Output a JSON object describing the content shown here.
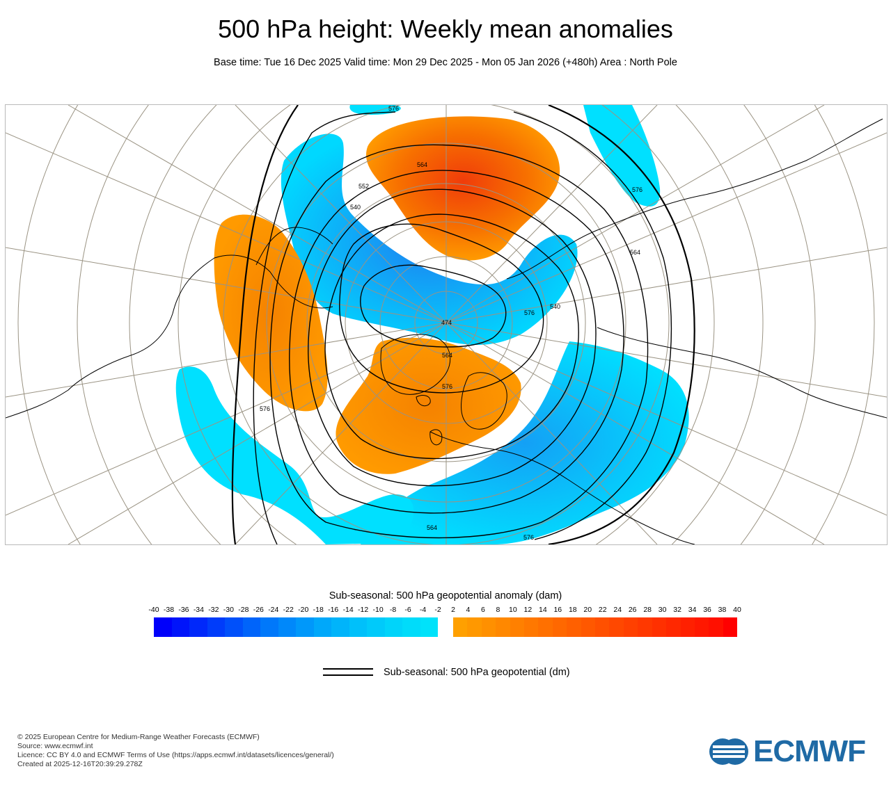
{
  "header": {
    "title": "500 hPa height: Weekly mean anomalies",
    "subtitle": "Base time: Tue 16 Dec 2025 Valid time: Mon 29 Dec 2025 - Mon 05 Jan 2026 (+480h) Area : North Pole"
  },
  "map": {
    "contour_labels": [
      "576",
      "564",
      "552",
      "540",
      "576",
      "564",
      "576",
      "540",
      "564",
      "576",
      "576",
      "564",
      "576"
    ],
    "pole_label": "474",
    "colors": {
      "negative": "#00e0ff",
      "negative_dark": "#1e8ff0",
      "positive": "#ff9a00",
      "positive_dark": "#f04a0a",
      "contour": "#000000",
      "graticule": "#999280"
    }
  },
  "colorbar": {
    "title": "Sub-seasonal: 500 hPa geopotential anomaly (dam)",
    "ticks": [
      "-40",
      "-38",
      "-36",
      "-34",
      "-32",
      "-30",
      "-28",
      "-26",
      "-24",
      "-22",
      "-20",
      "-18",
      "-16",
      "-14",
      "-12",
      "-10",
      "-8",
      "-6",
      "-4",
      "-2",
      "2",
      "4",
      "6",
      "8",
      "10",
      "12",
      "14",
      "16",
      "18",
      "20",
      "22",
      "24",
      "26",
      "28",
      "30",
      "32",
      "34",
      "36",
      "38",
      "40"
    ],
    "negative_colors": [
      "#0000fa",
      "#0014fa",
      "#0028fa",
      "#003cfa",
      "#0050fa",
      "#0064fa",
      "#0078fa",
      "#0088fa",
      "#0098fa",
      "#00a8fa",
      "#00b4fa",
      "#00c0fa",
      "#00cafa",
      "#00d4fa",
      "#00dcfa",
      "#00e2fa"
    ],
    "positive_colors": [
      "#ffa000",
      "#ff9800",
      "#ff9000",
      "#ff8800",
      "#ff8000",
      "#ff7800",
      "#ff7000",
      "#ff6800",
      "#ff6000",
      "#ff5800",
      "#ff5000",
      "#ff4800",
      "#ff4000",
      "#ff3800",
      "#ff3000",
      "#ff2800",
      "#ff2000",
      "#ff1800",
      "#ff1000",
      "#ff0000"
    ]
  },
  "legend": {
    "line_label": "Sub-seasonal: 500 hPa geopotential (dm)"
  },
  "footer": {
    "lines": [
      "© 2025 European Centre for Medium-Range Weather Forecasts (ECMWF)",
      "Source: www.ecmwf.int",
      "Licence: CC BY 4.0 and ECMWF Terms of Use (https://apps.ecmwf.int/datasets/licences/general/)",
      "Created at 2025-12-16T20:39:29.278Z"
    ]
  },
  "logo": {
    "text": "ECMWF",
    "color": "#1f6aa5"
  }
}
